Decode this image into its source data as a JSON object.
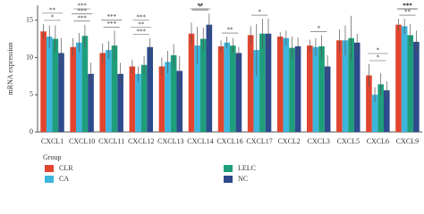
{
  "chart_data": {
    "type": "bar",
    "y_label": "mRNA expression",
    "categories": [
      "CXCL1",
      "CXCL10",
      "CXCL11",
      "CXCL12",
      "CXCL13",
      "CXCL14",
      "CXCL16",
      "CXCL17",
      "CXCL2",
      "CXCL3",
      "CXCL5",
      "CXCL6",
      "CXCL9"
    ],
    "series": [
      {
        "name": "CLR",
        "color": "#e2452f",
        "values": [
          13.5,
          11.4,
          10.6,
          8.8,
          8.8,
          13.2,
          11.5,
          13.0,
          12.8,
          11.6,
          12.3,
          7.6,
          14.4
        ],
        "errors": [
          1.0,
          1.2,
          1.3,
          0.9,
          1.2,
          1.5,
          0.8,
          1.2,
          0.6,
          0.8,
          1.5,
          1.5,
          0.8
        ]
      },
      {
        "name": "CA",
        "color": "#3db5dc",
        "values": [
          12.8,
          12.0,
          11.0,
          7.8,
          9.4,
          11.6,
          12.0,
          11.0,
          12.6,
          11.4,
          12.3,
          5.0,
          14.2
        ],
        "errors": [
          1.5,
          1.3,
          1.2,
          1.0,
          1.5,
          2.5,
          0.8,
          3.5,
          1.0,
          1.2,
          2.0,
          1.0,
          1.0
        ]
      },
      {
        "name": "LELC",
        "color": "#1f9e7b",
        "values": [
          12.5,
          12.9,
          11.6,
          9.0,
          10.3,
          12.5,
          11.6,
          13.2,
          11.3,
          11.5,
          12.6,
          6.4,
          13.0
        ],
        "errors": [
          1.8,
          1.5,
          2.0,
          1.2,
          1.5,
          1.5,
          1.0,
          2.0,
          1.5,
          1.5,
          3.0,
          1.5,
          1.5
        ]
      },
      {
        "name": "NC",
        "color": "#2d4a8d",
        "values": [
          10.6,
          7.8,
          7.8,
          11.4,
          8.2,
          14.4,
          10.6,
          13.2,
          11.5,
          8.8,
          12.0,
          5.6,
          12.1
        ],
        "errors": [
          2.0,
          1.5,
          1.5,
          1.2,
          2.0,
          1.5,
          0.8,
          2.0,
          1.2,
          1.5,
          1.2,
          1.2,
          1.5
        ]
      }
    ],
    "annotations": [
      {
        "category": "CXCL1",
        "label": "*"
      },
      {
        "category": "CXCL1",
        "label": "**"
      },
      {
        "category": "CXCL10",
        "label": "***"
      },
      {
        "category": "CXCL10",
        "label": "***"
      },
      {
        "category": "CXCL10",
        "label": "***"
      },
      {
        "category": "CXCL11",
        "label": "***"
      },
      {
        "category": "CXCL11",
        "label": "***"
      },
      {
        "category": "CXCL12",
        "label": "***"
      },
      {
        "category": "CXCL12",
        "label": "**"
      },
      {
        "category": "CXCL12",
        "label": "***"
      },
      {
        "category": "CXCL14",
        "label": "*"
      },
      {
        "category": "CXCL14",
        "label": "**"
      },
      {
        "category": "CXCL14",
        "label": "**"
      },
      {
        "category": "CXCL16",
        "label": "**"
      },
      {
        "category": "CXCL17",
        "label": "*"
      },
      {
        "category": "CXCL3",
        "label": "*"
      },
      {
        "category": "CXCL6",
        "label": "*"
      },
      {
        "category": "CXCL6",
        "label": "*"
      },
      {
        "category": "CXCL9",
        "label": "**"
      },
      {
        "category": "CXCL9",
        "label": "***"
      },
      {
        "category": "CXCL9",
        "label": "***"
      },
      {
        "category": "CXCL9",
        "label": "***"
      }
    ],
    "legend_title": "Group",
    "ylim": [
      0,
      17
    ],
    "yticks": [
      0,
      5,
      10,
      15
    ]
  }
}
